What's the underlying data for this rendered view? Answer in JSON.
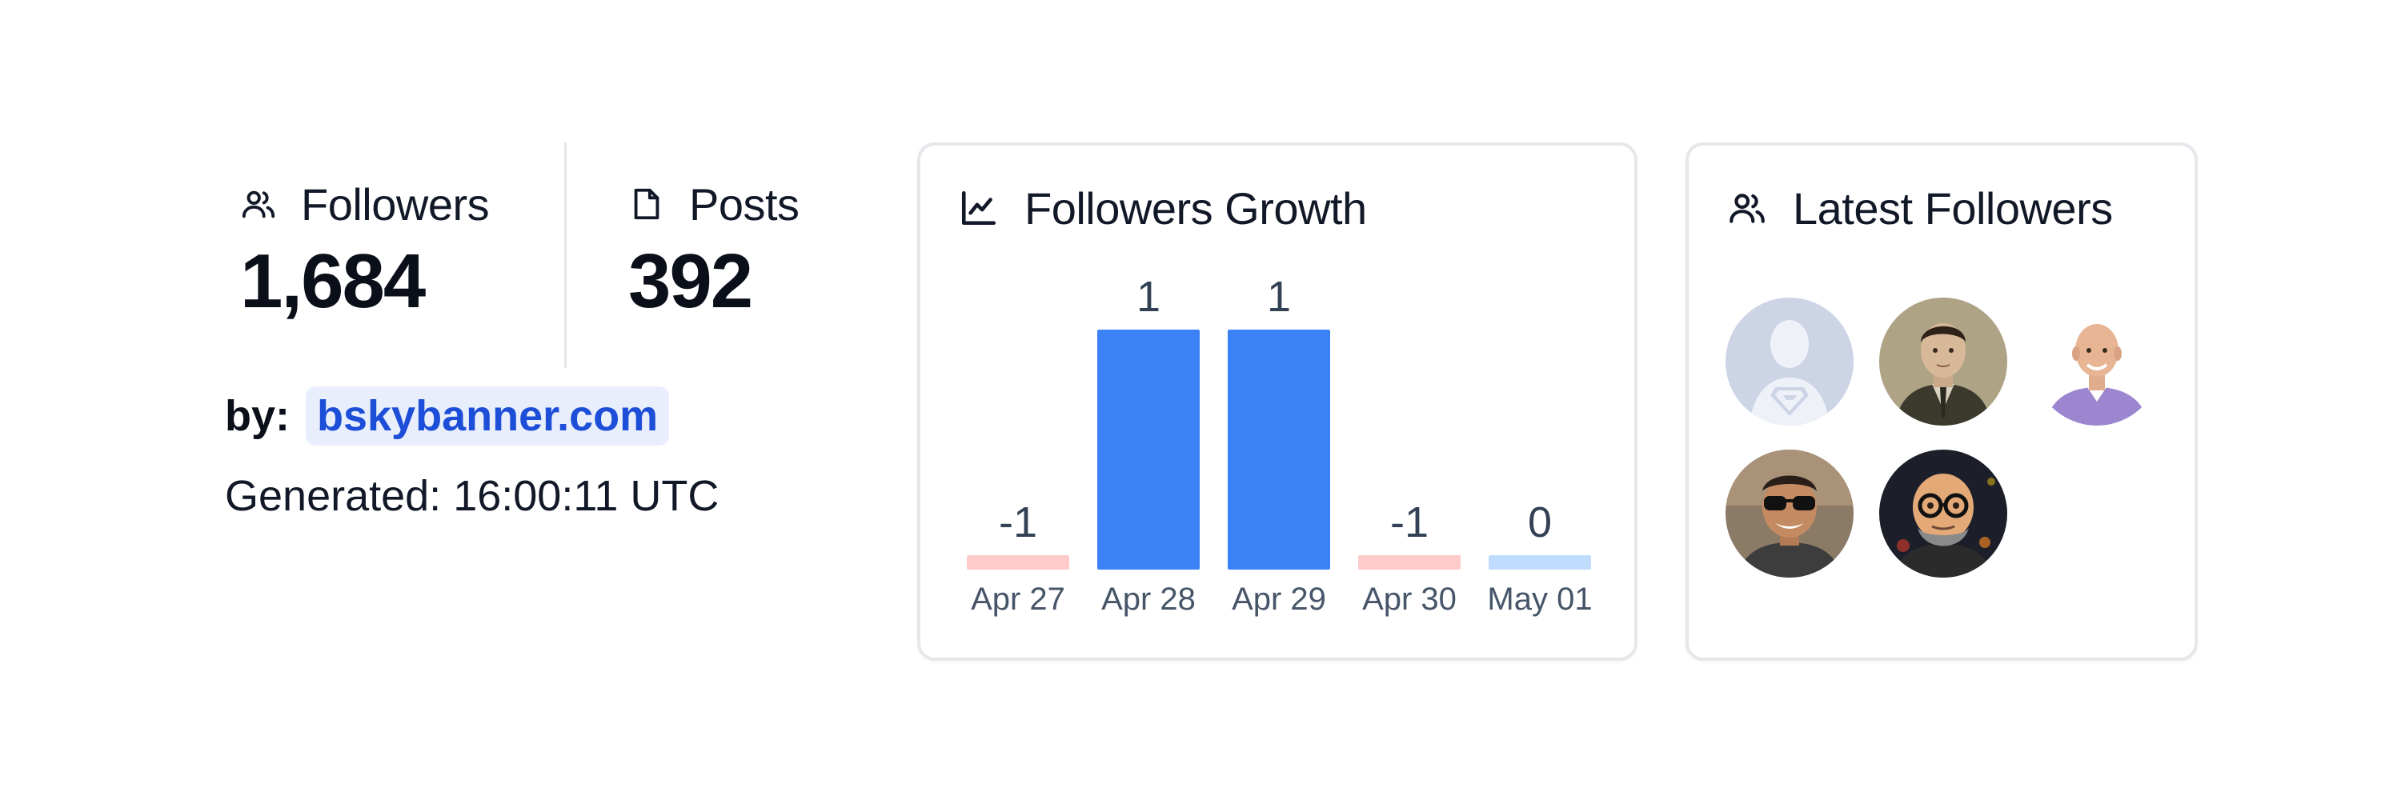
{
  "stats": {
    "followers": {
      "label": "Followers",
      "value": "1,684",
      "icon": "users-icon"
    },
    "posts": {
      "label": "Posts",
      "value": "392",
      "icon": "file-icon"
    }
  },
  "byline": {
    "label": "by:",
    "link": "bskybanner.com"
  },
  "generated": "Generated: 16:00:11 UTC",
  "growth_card": {
    "title": "Followers Growth",
    "icon": "line-chart-icon"
  },
  "followers_card": {
    "title": "Latest Followers",
    "icon": "users-icon"
  },
  "colors": {
    "positive": "#3b82f6",
    "negative": "#fecaca",
    "zero": "#bfdbfe",
    "link": "#1d4ed8"
  },
  "chart_data": {
    "type": "bar",
    "title": "Followers Growth",
    "categories": [
      "Apr 27",
      "Apr 28",
      "Apr 29",
      "Apr 30",
      "May 01"
    ],
    "values": [
      -1,
      1,
      1,
      -1,
      0
    ],
    "data_labels": [
      "-1",
      "1",
      "1",
      "-1",
      "0"
    ],
    "xlabel": "",
    "ylabel": "",
    "ylim": [
      0,
      1
    ],
    "grid": false,
    "legend": "none"
  },
  "latest_followers": [
    {
      "avatar": "superman-placeholder-avatar"
    },
    {
      "avatar": "vintage-portrait-avatar"
    },
    {
      "avatar": "bald-man-purple-shirt-avatar"
    },
    {
      "avatar": "sunglasses-man-avatar"
    },
    {
      "avatar": "cartoon-glasses-man-avatar"
    }
  ]
}
